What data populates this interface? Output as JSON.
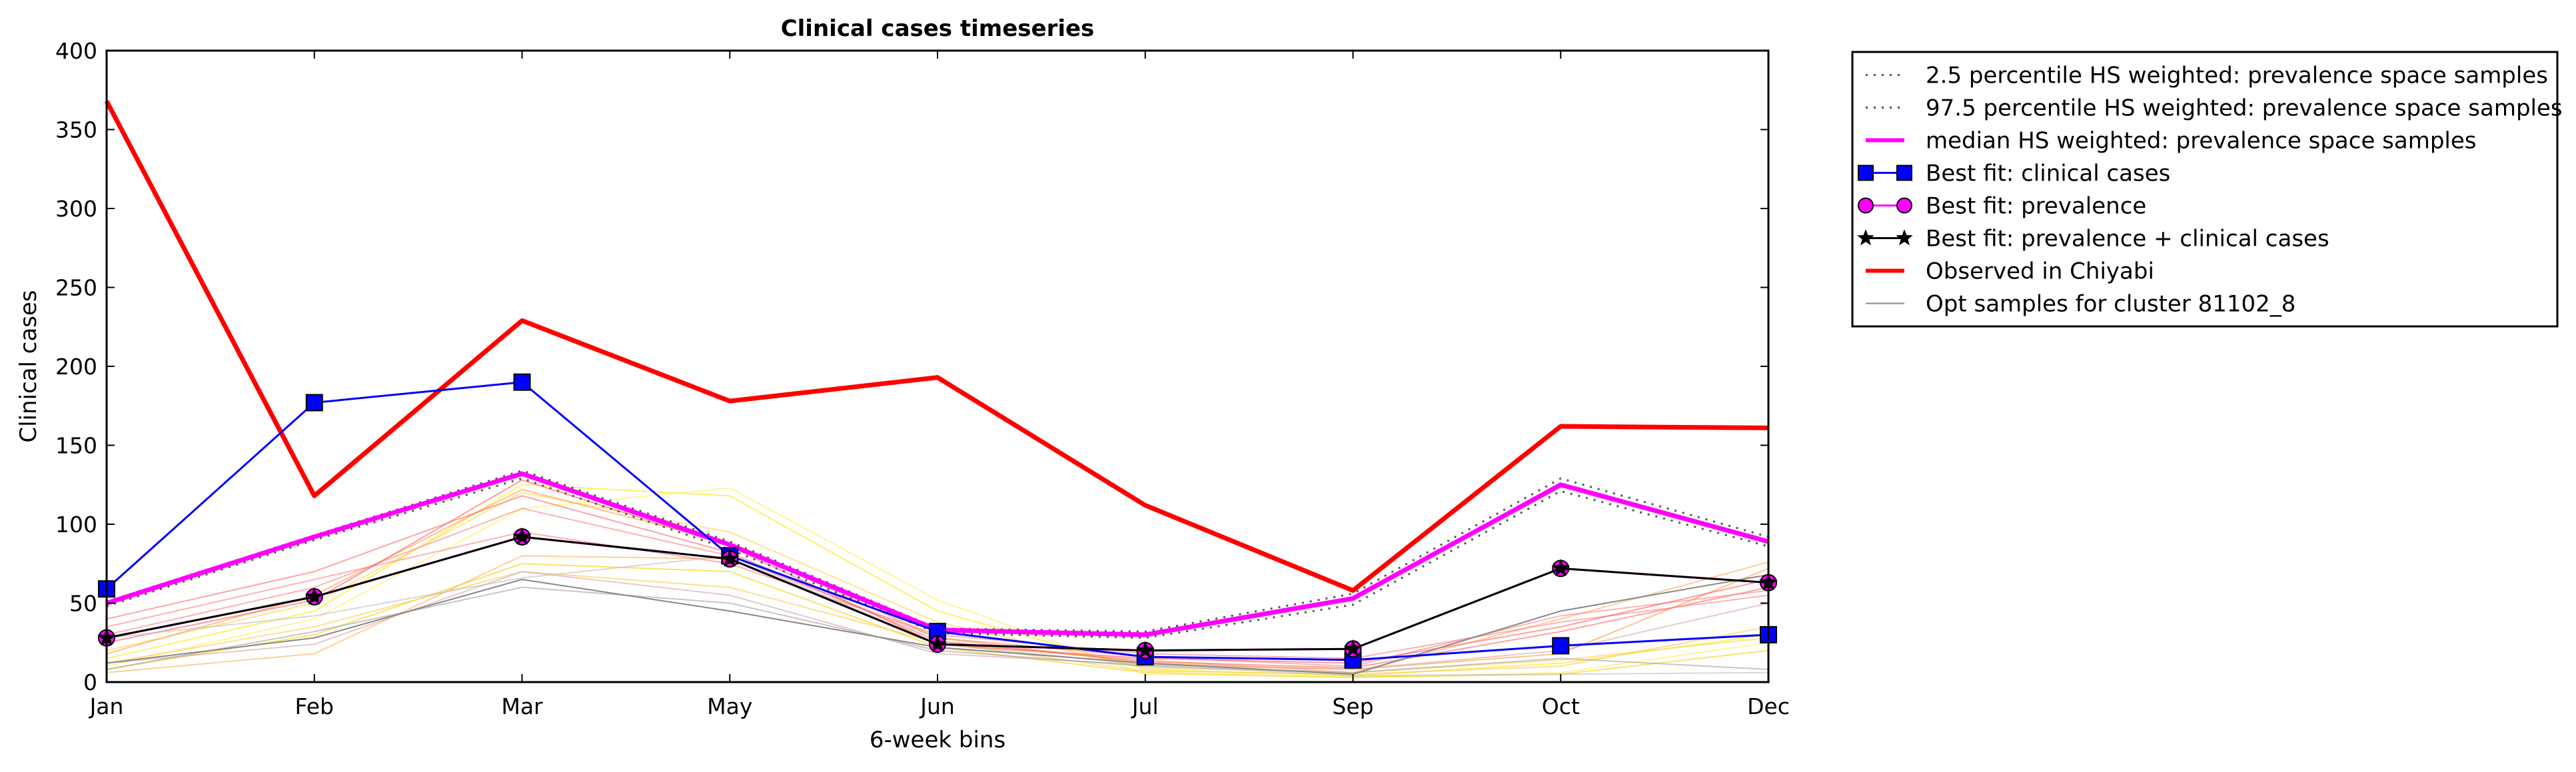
{
  "chart_data": {
    "type": "line",
    "title": "Clinical cases timeseries",
    "xlabel": "6-week bins",
    "ylabel": "Clinical cases",
    "categories": [
      "Jan",
      "Feb",
      "Mar",
      "May",
      "Jun",
      "Jul",
      "Sep",
      "Oct",
      "Dec"
    ],
    "ylim": [
      0,
      400
    ],
    "yticks": [
      0,
      50,
      100,
      150,
      200,
      250,
      300,
      350,
      400
    ],
    "grid": false,
    "legend_position": "outside-right",
    "series": [
      {
        "name": "2.5 percentile HS weighted: prevalence space samples",
        "style": "dotted",
        "color": "#555555",
        "values": [
          48,
          90,
          129,
          84,
          31,
          28,
          49,
          121,
          86
        ]
      },
      {
        "name": "97.5 percentile HS weighted: prevalence space samples",
        "style": "dotted",
        "color": "#555555",
        "values": [
          51,
          93,
          134,
          89,
          34,
          32,
          56,
          129,
          92
        ]
      },
      {
        "name": "median HS weighted: prevalence space samples",
        "style": "solid",
        "color": "#ff00ff",
        "values": [
          50,
          92,
          132,
          87,
          33,
          30,
          53,
          125,
          89
        ]
      },
      {
        "name": "Best fit: clinical cases",
        "style": "solid",
        "marker": "square",
        "color": "#0000ff",
        "values": [
          59,
          177,
          190,
          80,
          32,
          16,
          14,
          23,
          30
        ]
      },
      {
        "name": "Best fit: prevalence",
        "style": "solid",
        "marker": "circle",
        "color": "#ff00ff",
        "values": [
          28,
          54,
          92,
          78,
          24,
          20,
          21,
          72,
          63
        ]
      },
      {
        "name": "Best fit: prevalence + clinical cases",
        "style": "solid",
        "marker": "star",
        "color": "#000000",
        "values": [
          28,
          54,
          92,
          78,
          24,
          20,
          21,
          72,
          63
        ]
      },
      {
        "name": "Observed in Chiyabi",
        "style": "solid",
        "color": "#ff0000",
        "values": [
          368,
          118,
          229,
          178,
          193,
          112,
          58,
          162,
          161
        ]
      },
      {
        "name": "Opt samples for cluster 81102_8",
        "style": "solid",
        "color": "#888888",
        "values": [
          12,
          28,
          65,
          45,
          22,
          12,
          5,
          45,
          68
        ]
      }
    ],
    "samples": [
      {
        "color": "#ffe600",
        "values": [
          15,
          45,
          125,
          118,
          45,
          8,
          4,
          12,
          30
        ]
      },
      {
        "color": "#ffee55",
        "values": [
          10,
          40,
          110,
          123,
          52,
          5,
          3,
          6,
          25
        ]
      },
      {
        "color": "#ffd24d",
        "values": [
          20,
          50,
          120,
          95,
          38,
          9,
          6,
          14,
          28
        ]
      },
      {
        "color": "#f7d000",
        "values": [
          8,
          30,
          75,
          70,
          22,
          6,
          3,
          5,
          20
        ]
      },
      {
        "color": "#ffc84a",
        "values": [
          12,
          35,
          70,
          60,
          25,
          7,
          5,
          10,
          35
        ]
      },
      {
        "color": "#ff9a3c",
        "values": [
          18,
          55,
          122,
          88,
          28,
          12,
          8,
          18,
          72
        ]
      },
      {
        "color": "#ffae5a",
        "values": [
          6,
          18,
          80,
          78,
          24,
          14,
          6,
          40,
          76
        ]
      },
      {
        "color": "#ff6666",
        "values": [
          40,
          70,
          118,
          82,
          26,
          13,
          9,
          32,
          60
        ]
      },
      {
        "color": "#ff7f7f",
        "values": [
          35,
          65,
          95,
          75,
          30,
          18,
          15,
          38,
          55
        ]
      },
      {
        "color": "#ff8080",
        "values": [
          30,
          60,
          110,
          80,
          28,
          16,
          10,
          42,
          58
        ]
      },
      {
        "color": "#ff5c5c",
        "values": [
          25,
          52,
          128,
          86,
          24,
          15,
          12,
          35,
          65
        ]
      },
      {
        "color": "#d9a3a3",
        "values": [
          12,
          24,
          70,
          55,
          18,
          11,
          8,
          20,
          50
        ]
      },
      {
        "color": "#a0a0a0",
        "values": [
          8,
          32,
          60,
          50,
          20,
          10,
          6,
          15,
          8
        ]
      },
      {
        "color": "#bdbdbd",
        "values": [
          28,
          42,
          66,
          80,
          24,
          11,
          4,
          5,
          6
        ]
      }
    ]
  }
}
